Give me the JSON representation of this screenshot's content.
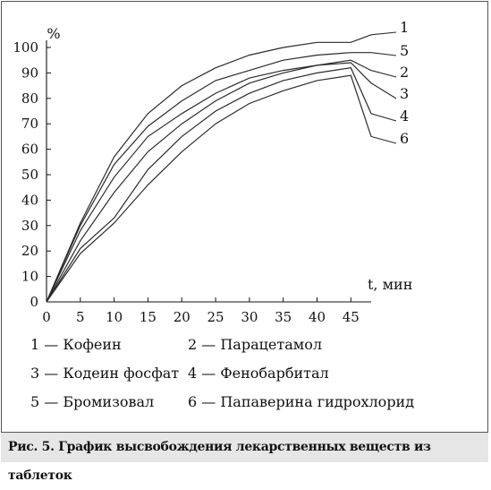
{
  "chart_data": {
    "type": "line",
    "title": "",
    "xlabel": "t, мин",
    "ylabel": "%",
    "xlim": [
      0,
      48
    ],
    "ylim": [
      0,
      100
    ],
    "x_ticks": [
      0,
      5,
      10,
      15,
      20,
      25,
      30,
      35,
      40,
      45
    ],
    "y_ticks": [
      0,
      10,
      20,
      30,
      40,
      50,
      60,
      70,
      80,
      90,
      100
    ],
    "grid": false,
    "legend": "below",
    "series": [
      {
        "id": "1",
        "name": "Кофеин",
        "x": [
          0,
          5,
          10,
          15,
          20,
          25,
          30,
          35,
          40,
          45,
          48
        ],
        "y": [
          0,
          31,
          57,
          74,
          85,
          92,
          97,
          100,
          102,
          102,
          105
        ]
      },
      {
        "id": "5",
        "name": "Бромизовал",
        "x": [
          0,
          5,
          10,
          15,
          20,
          25,
          30,
          35,
          40,
          45,
          48
        ],
        "y": [
          0,
          30,
          54,
          69,
          79,
          87,
          91,
          95,
          97,
          98,
          98
        ]
      },
      {
        "id": "2",
        "name": "Парацетамол",
        "x": [
          0,
          5,
          10,
          15,
          20,
          25,
          30,
          35,
          40,
          45,
          48
        ],
        "y": [
          0,
          28,
          49,
          65,
          74,
          82,
          88,
          91,
          93,
          95,
          91
        ]
      },
      {
        "id": "3",
        "name": "Кодеин фосфат",
        "x": [
          0,
          5,
          10,
          15,
          20,
          25,
          30,
          35,
          40,
          45,
          48
        ],
        "y": [
          0,
          24,
          43,
          59,
          70,
          79,
          86,
          90,
          93,
          94,
          86
        ]
      },
      {
        "id": "4",
        "name": "Фенобарбитал",
        "x": [
          0,
          5,
          10,
          15,
          20,
          25,
          30,
          35,
          40,
          45,
          48
        ],
        "y": [
          0,
          21,
          33,
          52,
          65,
          75,
          82,
          87,
          90,
          92,
          74
        ]
      },
      {
        "id": "6",
        "name": "Папаверина гидрохлорид",
        "x": [
          0,
          5,
          10,
          15,
          20,
          25,
          30,
          35,
          40,
          45,
          48
        ],
        "y": [
          0,
          19,
          31,
          46,
          59,
          70,
          78,
          83,
          87,
          89,
          65
        ]
      }
    ]
  },
  "legend": {
    "row1": {
      "left": "1 — Кофеин",
      "right": "2 — Парацетамол"
    },
    "row2": {
      "left": "3 — Кодеин фосфат",
      "right": "4 — Фенобарбитал"
    },
    "row3": {
      "left": "5 — Бромизовал",
      "right": "6 — Папаверина гидрохлорид"
    }
  },
  "caption": "Рис. 5. График высвобождения лекарственных веществ из таблеток"
}
